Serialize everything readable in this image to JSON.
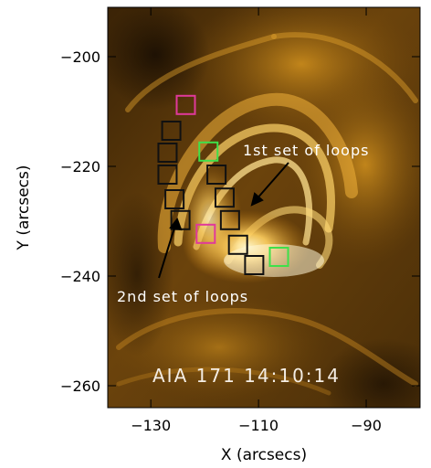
{
  "axes": {
    "xlabel": "X (arcsecs)",
    "ylabel": "Y (arcsecs)",
    "xlim": [
      -138,
      -80
    ],
    "ylim": [
      -264,
      -191
    ],
    "xticks": [
      {
        "value": -130,
        "label": "−130"
      },
      {
        "value": -110,
        "label": "−110"
      },
      {
        "value": -90,
        "label": "−90"
      }
    ],
    "yticks": [
      {
        "value": -200,
        "label": "−200"
      },
      {
        "value": -220,
        "label": "−220"
      },
      {
        "value": -240,
        "label": "−240"
      },
      {
        "value": -260,
        "label": "−260"
      }
    ]
  },
  "image_caption": "AIA 171 14:10:14",
  "annotations": {
    "first_set": "1st set of loops",
    "second_set": "2nd set of loops"
  },
  "colors": {
    "black_box": "#111111",
    "magenta_box": "#e0399b",
    "green_box": "#3fe04a",
    "caption": "#f4ede4"
  },
  "boxes": [
    {
      "color": "black",
      "x": -126.2,
      "y": -213.5
    },
    {
      "color": "black",
      "x": -126.9,
      "y": -217.5
    },
    {
      "color": "black",
      "x": -126.9,
      "y": -221.5
    },
    {
      "color": "black",
      "x": -125.6,
      "y": -226.0
    },
    {
      "color": "black",
      "x": -124.5,
      "y": -229.8
    },
    {
      "color": "magenta",
      "x": -123.5,
      "y": -208.8
    },
    {
      "color": "magenta",
      "x": -119.8,
      "y": -232.3
    },
    {
      "color": "green",
      "x": -119.3,
      "y": -217.3
    },
    {
      "color": "black",
      "x": -117.8,
      "y": -221.5
    },
    {
      "color": "black",
      "x": -116.3,
      "y": -225.7
    },
    {
      "color": "black",
      "x": -115.3,
      "y": -229.8
    },
    {
      "color": "black",
      "x": -113.8,
      "y": -234.3
    },
    {
      "color": "black",
      "x": -110.8,
      "y": -238.0
    },
    {
      "color": "green",
      "x": -106.2,
      "y": -236.5
    }
  ]
}
